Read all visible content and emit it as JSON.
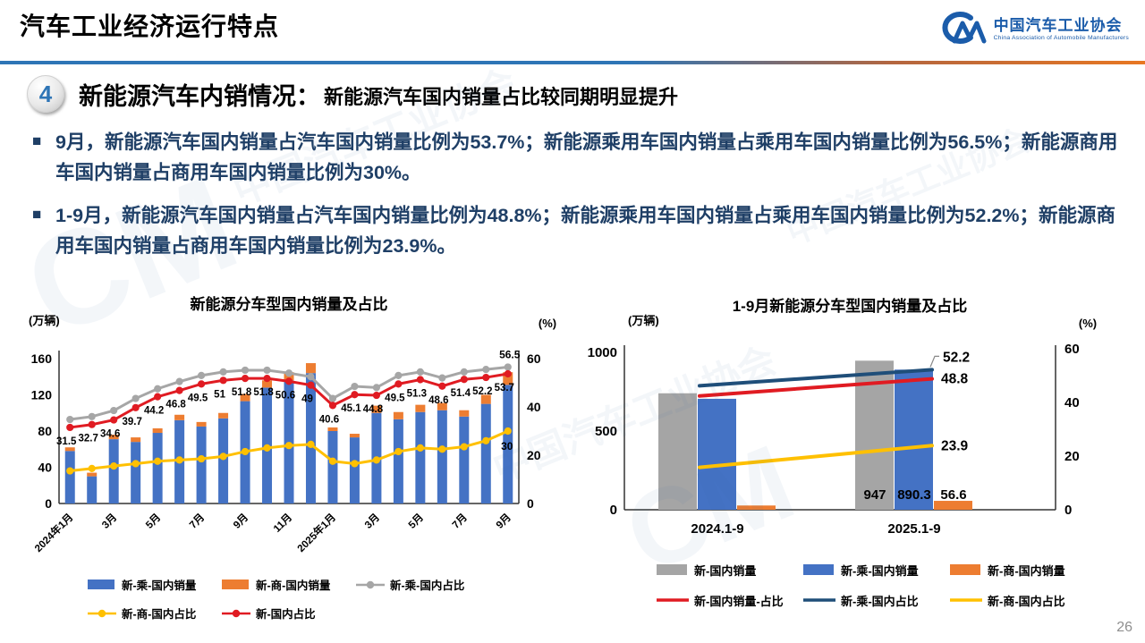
{
  "header": {
    "title": "汽车工业经济运行特点",
    "logo": {
      "mark": "caam-cm-mark",
      "org_cn": "中国汽车工业协会",
      "org_en": "China Association of Automobile Manufacturers"
    }
  },
  "section": {
    "number": "4",
    "title": "新能源汽车内销情况：",
    "subtitle": "新能源汽车国内销量占比较同期明显提升"
  },
  "bullet_marker": "■",
  "bullets": [
    "9月，新能源汽车国内销量占汽车国内销量比例为53.7%；新能源乘用车国内销量占乘用车国内销量比例为56.5%；新能源商用车国内销量占商用车国内销量比例为30%。",
    "1-9月，新能源汽车国内销量占汽车国内销量比例为48.8%；新能源乘用车国内销量占乘用车国内销量比例为52.2%；新能源商用车国内销量占商用车国内销量比例为23.9%。"
  ],
  "page_number": "26",
  "watermark": {
    "cn": "中国汽车工业协会",
    "en": "China Association of Automobile Manufacturers"
  },
  "colors": {
    "blue": "#4472c4",
    "orange": "#ed7d31",
    "gray_bar": "#a5a5a5",
    "gray_line": "#a6a6a6",
    "red": "#e01b22",
    "navy": "#1f4e79",
    "yellow": "#ffc000",
    "axis": "#333333",
    "label": "#000000"
  },
  "chart_data": [
    {
      "type": "bar",
      "subtype": "stacked-bar + line combo, dual axis",
      "title": "新能源分车型国内销量及占比",
      "left_axis": {
        "label": "(万辆)",
        "ticks": [
          0,
          40,
          80,
          120,
          160
        ],
        "max": 160
      },
      "right_axis": {
        "label": "(%)",
        "ticks": [
          0,
          20,
          40,
          60
        ],
        "max": 60
      },
      "categories": [
        "2024年1月",
        "2024年2月",
        "2024年3月",
        "2024年4月",
        "2024年5月",
        "2024年6月",
        "2024年7月",
        "2024年8月",
        "2024年9月",
        "2024年10月",
        "2024年11月",
        "2024年12月",
        "2025年1月",
        "2025年2月",
        "2025年3月",
        "2025年4月",
        "2025年5月",
        "2025年6月",
        "2025年7月",
        "2025年8月",
        "2025年9月"
      ],
      "x_ticks": [
        {
          "index": 0,
          "label": "2024年1月"
        },
        {
          "index": 2,
          "label": "3月"
        },
        {
          "index": 4,
          "label": "5月"
        },
        {
          "index": 6,
          "label": "7月"
        },
        {
          "index": 8,
          "label": "9月"
        },
        {
          "index": 10,
          "label": "11月"
        },
        {
          "index": 12,
          "label": "2025年1月"
        },
        {
          "index": 14,
          "label": "3月"
        },
        {
          "index": 16,
          "label": "5月"
        },
        {
          "index": 18,
          "label": "7月"
        },
        {
          "index": 20,
          "label": "9月"
        }
      ],
      "series": [
        {
          "name": "新-乘-国内销量",
          "kind": "bar",
          "axis": "left",
          "color": "#4472c4",
          "estimated": true,
          "values": [
            58,
            30,
            71,
            68,
            78,
            92,
            85,
            94,
            113,
            128,
            136,
            144,
            80,
            73,
            100,
            93,
            101,
            103,
            96,
            110,
            131
          ]
        },
        {
          "name": "新-商-国内销量",
          "kind": "bar",
          "axis": "left",
          "stacked": true,
          "color": "#ed7d31",
          "estimated": true,
          "values": [
            4,
            4,
            5,
            5,
            5,
            6,
            5,
            6,
            8,
            8,
            9,
            11,
            4,
            4,
            8,
            8,
            8,
            8,
            7,
            10,
            14
          ]
        },
        {
          "name": "新-乘-国内占比",
          "kind": "line",
          "axis": "right",
          "color": "#a6a6a6",
          "estimated": true,
          "values": [
            34.8,
            36,
            38.5,
            43.5,
            47.5,
            50.5,
            53,
            54.5,
            55.2,
            55.2,
            54,
            52.5,
            43.5,
            48.5,
            48,
            53,
            54.5,
            52,
            54.5,
            55.5,
            56.5
          ],
          "end_label": "56.5"
        },
        {
          "name": "新-商-国内占比",
          "kind": "line",
          "axis": "right",
          "color": "#ffc000",
          "estimated": true,
          "values": [
            13.5,
            14.5,
            15.5,
            16.5,
            17.5,
            18,
            18.5,
            19.5,
            21.5,
            23,
            24,
            24.5,
            17.5,
            16.5,
            18,
            21.5,
            23,
            22.5,
            23.5,
            26,
            30
          ],
          "end_label": "30"
        },
        {
          "name": "新-国内占比",
          "kind": "line",
          "axis": "right",
          "color": "#e01b22",
          "values": [
            31.5,
            32.7,
            34.6,
            39.7,
            44.2,
            46.8,
            49.5,
            51,
            51.8,
            51.8,
            50.6,
            49,
            40.6,
            45.1,
            44.8,
            49.5,
            51.3,
            48.6,
            51.4,
            52.2,
            53.7
          ],
          "point_labels": [
            "31.5",
            "32.7",
            "34.6",
            "39.7",
            "44.2",
            "46.8",
            "49.5",
            "51",
            "51.8",
            "51.8",
            "50.6",
            "49",
            "40.6",
            "45.1",
            "44.8",
            "49.5",
            "51.3",
            "48.6",
            "51.4",
            "52.2",
            "53.7"
          ]
        }
      ],
      "legend": [
        {
          "label": "新-乘-国内销量",
          "type": "bar",
          "color": "#4472c4"
        },
        {
          "label": "新-商-国内销量",
          "type": "bar",
          "color": "#ed7d31"
        },
        {
          "label": "新-乘-国内占比",
          "type": "line-marker",
          "color": "#a6a6a6"
        },
        {
          "label": "新-商-国内占比",
          "type": "line-marker",
          "color": "#ffc000"
        },
        {
          "label": "新-国内占比",
          "type": "line-marker",
          "color": "#e01b22"
        }
      ],
      "legend_position": "bottom",
      "grid": false
    },
    {
      "type": "bar",
      "subtype": "grouped-bar + line, dual axis",
      "title": "1-9月新能源分车型国内销量及占比",
      "left_axis": {
        "label": "(万辆)",
        "ticks": [
          0,
          500,
          1000
        ],
        "max": 1000
      },
      "right_axis": {
        "label": "(%)",
        "ticks": [
          0,
          20,
          40,
          60
        ],
        "max": 60
      },
      "categories": [
        "2024.1-9",
        "2025.1-9"
      ],
      "bar_series": [
        {
          "name": "新-国内销量",
          "color": "#a5a5a5",
          "values": [
            740,
            947
          ],
          "value_labels": [
            null,
            "947"
          ],
          "estimated_2024": true
        },
        {
          "name": "新-乘-国内销量",
          "color": "#4472c4",
          "values": [
            705,
            890.3
          ],
          "value_labels": [
            null,
            "890.3"
          ],
          "estimated_2024": true
        },
        {
          "name": "新-商-国内销量",
          "color": "#ed7d31",
          "values": [
            27,
            56.6
          ],
          "value_labels": [
            null,
            "56.6"
          ],
          "estimated_2024": true
        }
      ],
      "line_series": [
        {
          "name": "新-国内销量-占比",
          "color": "#e01b22",
          "values": [
            42.4,
            48.8
          ],
          "end_label": "48.8",
          "estimated_2024": true
        },
        {
          "name": "新-乘-国内占比",
          "color": "#1f4e79",
          "values": [
            46.2,
            52.2
          ],
          "end_label": "52.2",
          "estimated_2024": true,
          "end_label_bracket": true
        },
        {
          "name": "新-商-国内占比",
          "color": "#ffc000",
          "values": [
            15.8,
            23.9
          ],
          "end_label": "23.9",
          "estimated_2024": true
        }
      ],
      "legend": [
        {
          "label": "新-国内销量",
          "type": "bar",
          "color": "#a5a5a5"
        },
        {
          "label": "新-乘-国内销量",
          "type": "bar",
          "color": "#4472c4"
        },
        {
          "label": "新-商-国内销量",
          "type": "bar",
          "color": "#ed7d31"
        },
        {
          "label": "新-国内销量-占比",
          "type": "line",
          "color": "#e01b22"
        },
        {
          "label": "新-乘-国内占比",
          "type": "line",
          "color": "#1f4e79"
        },
        {
          "label": "新-商-国内占比",
          "type": "line",
          "color": "#ffc000"
        }
      ],
      "legend_position": "bottom",
      "grid": false
    }
  ]
}
